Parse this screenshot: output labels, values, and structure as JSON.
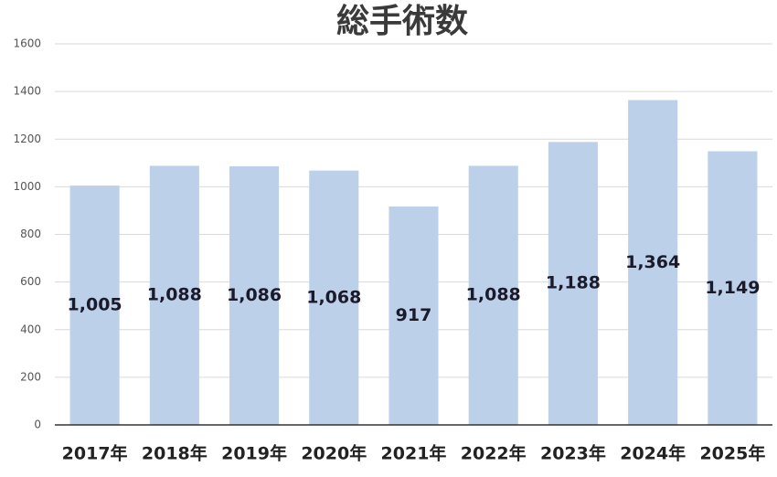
{
  "chart_data": {
    "type": "bar",
    "title": "総手術数",
    "categories": [
      "2017年",
      "2018年",
      "2019年",
      "2020年",
      "2021年",
      "2022年",
      "2023年",
      "2024年",
      "2025年"
    ],
    "values": [
      1005,
      1088,
      1086,
      1068,
      917,
      1088,
      1188,
      1364,
      1149
    ],
    "value_labels": [
      "1,005",
      "1,088",
      "1,086",
      "1,068",
      "917",
      "1,088",
      "1,188",
      "1,364",
      "1,149"
    ],
    "color": "#bdd0ea",
    "ylim": [
      0,
      1600
    ],
    "yticks": [
      0,
      200,
      400,
      600,
      800,
      1000,
      1200,
      1400,
      1600
    ],
    "grid": true
  }
}
